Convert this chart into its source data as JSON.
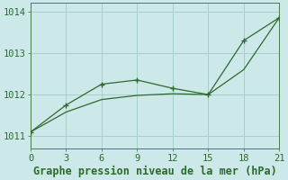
{
  "line1_x": [
    0,
    3,
    6,
    9,
    12,
    15,
    18,
    21
  ],
  "line1_y": [
    1011.1,
    1011.75,
    1012.25,
    1012.35,
    1012.15,
    1012.0,
    1013.3,
    1013.85
  ],
  "line2_x": [
    0,
    3,
    6,
    9,
    12,
    15,
    18,
    21
  ],
  "line2_y": [
    1011.1,
    1011.58,
    1011.88,
    1011.98,
    1012.02,
    1012.0,
    1012.6,
    1013.85
  ],
  "line_color": "#2d6a2d",
  "bg_color": "#cce8e8",
  "grid_color": "#a8cece",
  "spine_color": "#4d7a4d",
  "xlabel": "Graphe pression niveau de la mer (hPa)",
  "xlim": [
    0,
    21
  ],
  "ylim": [
    1010.7,
    1014.2
  ],
  "yticks": [
    1011,
    1012,
    1013,
    1014
  ],
  "xticks": [
    0,
    3,
    6,
    9,
    12,
    15,
    18,
    21
  ],
  "tick_fontsize": 7.5,
  "xlabel_fontsize": 8.5
}
